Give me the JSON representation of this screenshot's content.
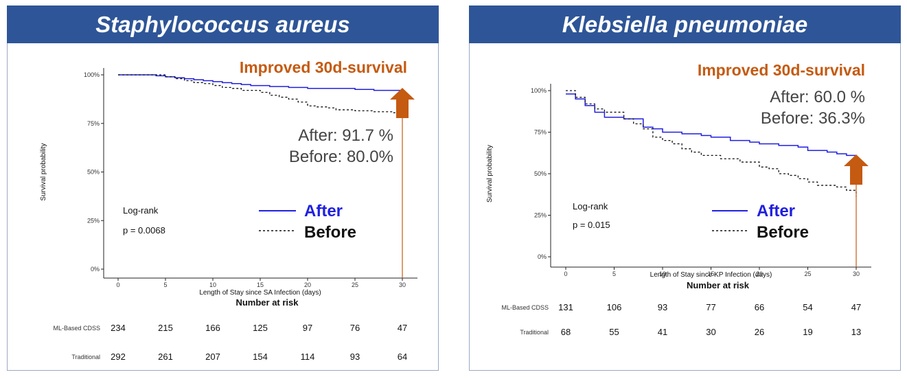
{
  "chart_data": [
    {
      "type": "line",
      "title": "Staphylococcus aureus",
      "headline": "Improved 30d-survival",
      "xlabel": "Length of Stay since SA Infection (days)",
      "ylabel": "Survival probability",
      "x_ticks": [
        "0",
        "5",
        "10",
        "15",
        "20",
        "25",
        "30"
      ],
      "y_ticks": [
        "0%",
        "25%",
        "50%",
        "75%",
        "100%"
      ],
      "xlim": [
        0,
        30
      ],
      "ylim": [
        0,
        1
      ],
      "stats": [
        "After: 91.7 %",
        "Before: 80.0%"
      ],
      "test": [
        "Log-rank",
        "p = 0.0068"
      ],
      "legend": [
        "After",
        "Before"
      ],
      "series": [
        {
          "name": "After",
          "x": [
            0,
            2,
            4,
            5,
            6,
            7,
            8,
            9,
            10,
            11,
            12,
            13,
            14,
            16,
            18,
            20,
            22,
            25,
            27,
            30
          ],
          "y": [
            1.0,
            1.0,
            0.995,
            0.99,
            0.985,
            0.98,
            0.975,
            0.97,
            0.965,
            0.96,
            0.955,
            0.95,
            0.945,
            0.94,
            0.935,
            0.93,
            0.93,
            0.925,
            0.92,
            0.917
          ]
        },
        {
          "name": "Before",
          "x": [
            0,
            3,
            5,
            6,
            7,
            8,
            9,
            10,
            11,
            12,
            13,
            15,
            16,
            17,
            18,
            19,
            20,
            21,
            22,
            23,
            25,
            27,
            29,
            30
          ],
          "y": [
            1.0,
            1.0,
            0.99,
            0.98,
            0.97,
            0.96,
            0.955,
            0.945,
            0.935,
            0.93,
            0.92,
            0.91,
            0.895,
            0.885,
            0.875,
            0.86,
            0.84,
            0.835,
            0.83,
            0.82,
            0.815,
            0.81,
            0.805,
            0.8
          ]
        }
      ],
      "risk_table": {
        "title": "Number at risk",
        "rows": [
          {
            "label": "ML-Based CDSS",
            "values": [
              "234",
              "215",
              "166",
              "125",
              "97",
              "76",
              "47"
            ]
          },
          {
            "label": "Traditional",
            "values": [
              "292",
              "261",
              "207",
              "154",
              "114",
              "93",
              "64"
            ]
          }
        ]
      },
      "colors": {
        "after": "#1f1fe0",
        "before": "#111111",
        "arrow": "#c55a11"
      }
    },
    {
      "type": "line",
      "title": "Klebsiella pneumoniae",
      "headline": "Improved 30d-survival",
      "xlabel": "Length of Stay since KP Infection (days)",
      "ylabel": "Survival probability",
      "x_ticks": [
        "0",
        "5",
        "10",
        "15",
        "20",
        "25",
        "30"
      ],
      "y_ticks": [
        "0%",
        "25%",
        "50%",
        "75%",
        "100%"
      ],
      "xlim": [
        0,
        30
      ],
      "ylim": [
        0,
        1
      ],
      "stats": [
        "After: 60.0 %",
        "Before: 36.3%"
      ],
      "test": [
        "Log-rank",
        "p = 0.015"
      ],
      "legend": [
        "After",
        "Before"
      ],
      "series": [
        {
          "name": "After",
          "x": [
            0,
            1,
            2,
            3,
            4,
            6,
            8,
            9,
            10,
            12,
            14,
            15,
            17,
            19,
            20,
            22,
            24,
            25,
            27,
            28,
            29,
            30
          ],
          "y": [
            0.98,
            0.95,
            0.91,
            0.87,
            0.84,
            0.83,
            0.78,
            0.77,
            0.75,
            0.74,
            0.73,
            0.72,
            0.7,
            0.69,
            0.68,
            0.67,
            0.66,
            0.64,
            0.63,
            0.62,
            0.61,
            0.6
          ]
        },
        {
          "name": "Before",
          "x": [
            0,
            1,
            2,
            3,
            4,
            6,
            7,
            8,
            9,
            10,
            11,
            12,
            13,
            14,
            16,
            18,
            20,
            21,
            22,
            23,
            24,
            25,
            26,
            28,
            29,
            30
          ],
          "y": [
            1.0,
            0.96,
            0.92,
            0.89,
            0.87,
            0.83,
            0.8,
            0.77,
            0.72,
            0.7,
            0.68,
            0.65,
            0.63,
            0.61,
            0.59,
            0.57,
            0.54,
            0.53,
            0.5,
            0.49,
            0.47,
            0.45,
            0.43,
            0.42,
            0.4,
            0.363
          ]
        }
      ],
      "risk_table": {
        "title": "Number at risk",
        "rows": [
          {
            "label": "ML-Based CDSS",
            "values": [
              "131",
              "106",
              "93",
              "77",
              "66",
              "54",
              "47"
            ]
          },
          {
            "label": "Traditional",
            "values": [
              "68",
              "55",
              "41",
              "30",
              "26",
              "19",
              "13"
            ]
          }
        ]
      },
      "colors": {
        "after": "#1f1fe0",
        "before": "#111111",
        "arrow": "#c55a11"
      }
    }
  ]
}
